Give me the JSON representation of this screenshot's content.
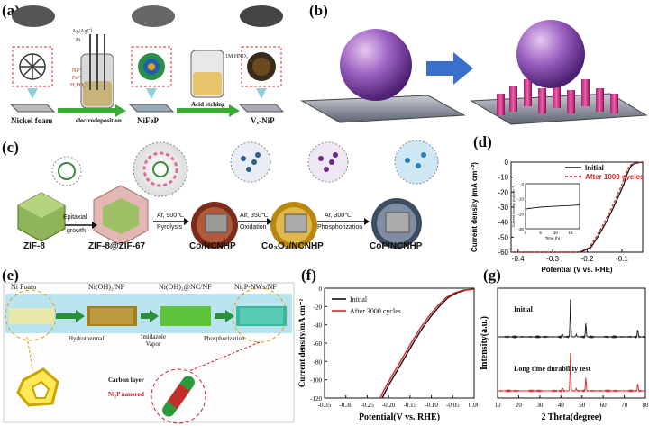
{
  "panels": {
    "a": {
      "label": "(a)",
      "steps": [
        "Nickel foam",
        "NiFeP",
        "Vₓ-NiP"
      ],
      "arrows": [
        "electrodeposition",
        "Acid etching"
      ],
      "beaker1": [
        "Ag/AgCl",
        "Pt",
        "Ni²⁺",
        "Fe³⁺",
        "H₂PO₂⁻"
      ],
      "beaker2": "1M HNO₃"
    },
    "b": {
      "label": "(b)"
    },
    "c": {
      "label": "(c)",
      "materials": [
        "ZIF-8",
        "ZIF-8@ZIF-67",
        "Co/NCNHP",
        "Co₃O₄/NCNHP",
        "CoP/NCNHP"
      ],
      "arrows": [
        {
          "top": "Epitaxial",
          "bottom": "growth"
        },
        {
          "top": "Ar, 900℃",
          "bottom": "Pyrolysis"
        },
        {
          "top": "Air, 350℃",
          "bottom": "Oxidation"
        },
        {
          "top": "Ar, 300℃",
          "bottom": "Phosphorization"
        }
      ]
    },
    "e": {
      "label": "(e)",
      "stages": [
        "Ni Foam",
        "Ni(OH)₂/NF",
        "Ni(OH)₂@NC/NF",
        "Ni₂P-NWs/NF"
      ],
      "arrows": [
        "Hydrothermal",
        "Imidazole Vapor",
        "Phosphorization"
      ],
      "legend": [
        "Carbon layer",
        "Ni₂P nanorod"
      ]
    }
  },
  "chart_data": [
    {
      "id": "d",
      "label": "(d)",
      "type": "line",
      "xlabel": "Potential (V vs. RHE)",
      "ylabel": "Current density (mA cm⁻²)",
      "xlim": [
        -0.42,
        -0.04
      ],
      "ylim": [
        -60,
        0
      ],
      "xticks": [
        -0.4,
        -0.3,
        -0.2,
        -0.1
      ],
      "yticks": [
        0,
        -10,
        -20,
        -30,
        -40,
        -50,
        -60
      ],
      "series": [
        {
          "name": "Initial",
          "color": "#111111",
          "style": "solid",
          "x": [
            -0.42,
            -0.22,
            -0.19,
            -0.17,
            -0.15,
            -0.13,
            -0.11,
            -0.095,
            -0.085,
            -0.075,
            -0.065,
            -0.05,
            -0.04
          ],
          "y": [
            -60,
            -60,
            -57,
            -50,
            -42,
            -33,
            -23,
            -15,
            -8,
            -3,
            -1,
            -0.3,
            0
          ]
        },
        {
          "name": "After 1000 cycles",
          "color": "#d62728",
          "style": "dashed",
          "x": [
            -0.42,
            -0.225,
            -0.195,
            -0.175,
            -0.155,
            -0.135,
            -0.115,
            -0.1,
            -0.09,
            -0.08,
            -0.07,
            -0.055,
            -0.04
          ],
          "y": [
            -60,
            -60,
            -57,
            -50,
            -42,
            -33,
            -23,
            -15,
            -8,
            -3,
            -1,
            -0.3,
            0
          ]
        }
      ],
      "inset": {
        "xlabel": "Time (h)",
        "ylabel": "Current density (mA cm⁻²)",
        "xlim": [
          0,
          18
        ],
        "ylim": [
          -30,
          0
        ],
        "xticks": [
          0,
          5,
          10,
          15
        ],
        "yticks": [
          0,
          -10,
          -20,
          -30
        ],
        "x": [
          0,
          1,
          3,
          5,
          8,
          11,
          14,
          17,
          18
        ],
        "y": [
          -17,
          -16.5,
          -16,
          -15.6,
          -15.2,
          -14.9,
          -14.6,
          -14.3,
          -14.2
        ]
      }
    },
    {
      "id": "f",
      "label": "(f)",
      "type": "line",
      "xlabel": "Potential(V vs. RHE)",
      "ylabel": "Current density/mA cm⁻²",
      "xlim": [
        -0.35,
        0.0
      ],
      "ylim": [
        -120,
        0
      ],
      "xticks": [
        -0.35,
        -0.3,
        -0.25,
        -0.2,
        -0.15,
        -0.1,
        -0.05,
        0.0
      ],
      "xtick_labels": [
        "-0.35",
        "-0.30",
        "-0.25",
        "-0.20",
        "-0.15",
        "-0.10",
        "-0.05",
        "0.00"
      ],
      "yticks": [
        0,
        -20,
        -40,
        -60,
        -80,
        -100,
        -120
      ],
      "series": [
        {
          "name": "Initial",
          "color": "#111111",
          "x": [
            -0.215,
            -0.2,
            -0.18,
            -0.16,
            -0.14,
            -0.12,
            -0.1,
            -0.08,
            -0.06,
            -0.04,
            -0.02,
            0.0
          ],
          "y": [
            -120,
            -106,
            -90,
            -74,
            -58,
            -43,
            -30,
            -19,
            -10,
            -5,
            -2,
            -1
          ]
        },
        {
          "name": "After 3000 cycles",
          "color": "#d62728",
          "x": [
            -0.22,
            -0.205,
            -0.185,
            -0.165,
            -0.145,
            -0.125,
            -0.105,
            -0.085,
            -0.065,
            -0.045,
            -0.025,
            0.0
          ],
          "y": [
            -120,
            -106,
            -90,
            -74,
            -58,
            -43,
            -30,
            -19,
            -10,
            -5,
            -2,
            -1
          ]
        }
      ]
    },
    {
      "id": "g",
      "label": "(g)",
      "type": "line",
      "xlabel": "2 Theta(degree)",
      "ylabel": "Intensity(a.u.)",
      "xlim": [
        10,
        80
      ],
      "xticks": [
        10,
        20,
        30,
        40,
        50,
        60,
        70,
        80
      ],
      "series": [
        {
          "name": "Initial",
          "color": "#111111",
          "peaks": [
            [
              44.5,
              1.0
            ],
            [
              51.8,
              0.38
            ],
            [
              76.4,
              0.22
            ],
            [
              40.8,
              0.08
            ],
            [
              47.3,
              0.07
            ]
          ]
        },
        {
          "name": "Long time durability test",
          "color": "#d62728",
          "peaks": [
            [
              44.5,
              1.0
            ],
            [
              51.8,
              0.38
            ],
            [
              76.4,
              0.22
            ],
            [
              40.8,
              0.08
            ],
            [
              47.3,
              0.07
            ]
          ]
        }
      ]
    }
  ]
}
